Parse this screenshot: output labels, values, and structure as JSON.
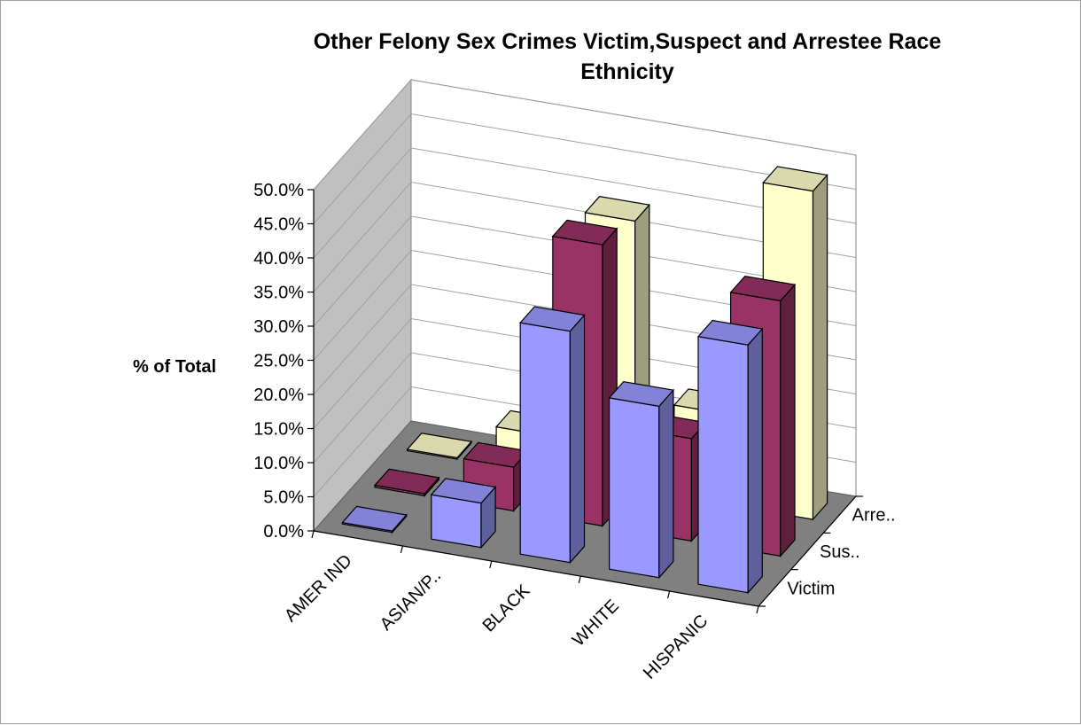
{
  "chart_data": {
    "type": "bar",
    "variant": "3d-column",
    "title_lines": [
      "Other Felony Sex Crimes Victim,Suspect and Arrestee Race",
      "Ethnicity"
    ],
    "ylabel": "% of Total",
    "xlabel": "",
    "categories": [
      "AMER IND",
      "ASIAN/P..",
      "BLACK",
      "WHITE",
      "HISPANIC"
    ],
    "ylim": [
      0,
      50
    ],
    "yticks": [
      "0.0%",
      "5.0%",
      "10.0%",
      "15.0%",
      "20.0%",
      "25.0%",
      "30.0%",
      "35.0%",
      "40.0%",
      "45.0%",
      "50.0%"
    ],
    "depth_labels": [
      "Victim",
      "Sus..",
      "Arre.."
    ],
    "series": [
      {
        "name": "Victim",
        "values": [
          0.2,
          6.5,
          33.9,
          25.1,
          36.3
        ],
        "color": "#9999ff"
      },
      {
        "name": "Sus..",
        "values": [
          0.3,
          6.4,
          41.2,
          15.0,
          37.4
        ],
        "color": "#993366"
      },
      {
        "name": "Arre..",
        "values": [
          0.2,
          5.7,
          39.3,
          13.3,
          48.1
        ],
        "color": "#ffffcc"
      }
    ],
    "grid": true,
    "legend": "none"
  }
}
